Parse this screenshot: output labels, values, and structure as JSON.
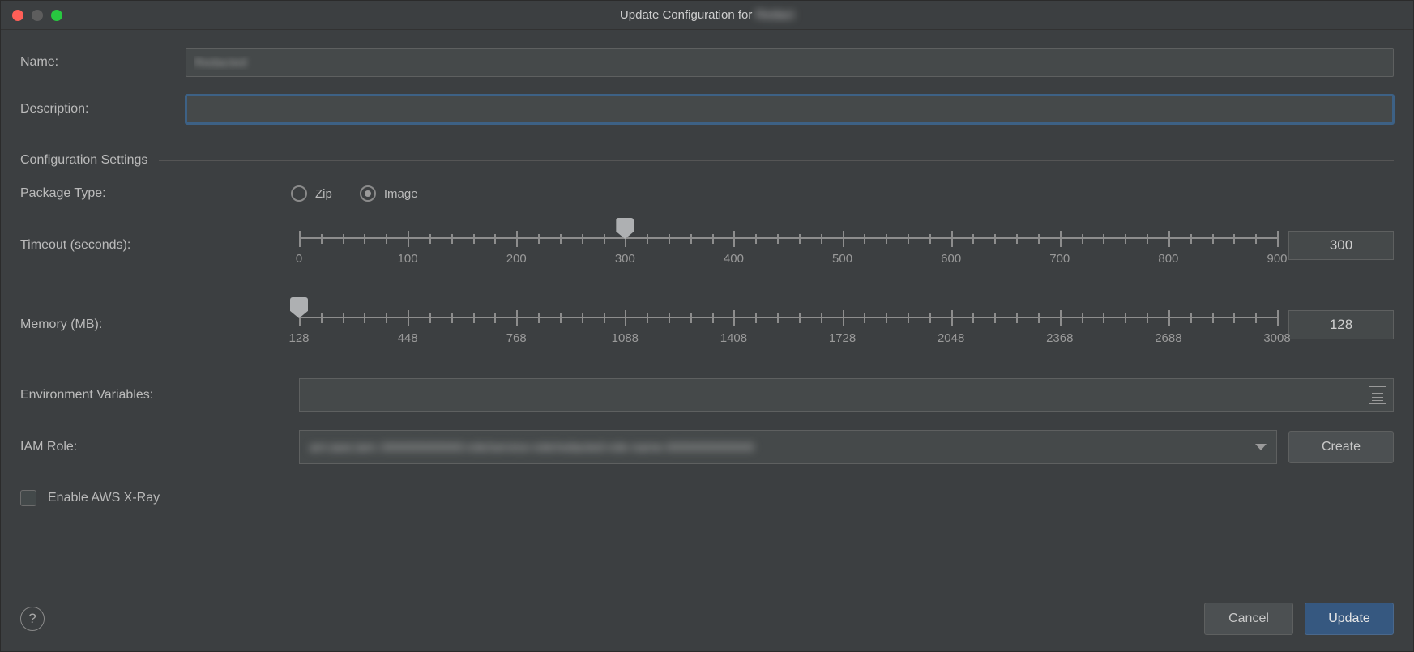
{
  "window": {
    "title_prefix": "Update Configuration for",
    "title_subject": "Redact"
  },
  "colors": {
    "background": "#3c3f41",
    "input_bg": "#45494a",
    "border": "#5e6060",
    "accent": "#365880",
    "text": "#bbbbbb",
    "focus_border": "#3d6185"
  },
  "fields": {
    "name": {
      "label": "Name:",
      "value": "Redacted"
    },
    "description": {
      "label": "Description:",
      "value": ""
    }
  },
  "section_title": "Configuration Settings",
  "package_type": {
    "label": "Package Type:",
    "options": [
      {
        "label": "Zip",
        "selected": false
      },
      {
        "label": "Image",
        "selected": true
      }
    ]
  },
  "timeout": {
    "label": "Timeout (seconds):",
    "min": 0,
    "max": 900,
    "major_step": 100,
    "minor_per_major": 5,
    "major_ticks": [
      0,
      100,
      200,
      300,
      400,
      500,
      600,
      700,
      800,
      900
    ],
    "value": 300
  },
  "memory": {
    "label": "Memory (MB):",
    "min": 128,
    "max": 3008,
    "major_step": 320,
    "minor_per_major": 5,
    "major_ticks": [
      128,
      448,
      768,
      1088,
      1408,
      1728,
      2048,
      2368,
      2688,
      3008
    ],
    "value": 128
  },
  "env_vars": {
    "label": "Environment Variables:",
    "value": ""
  },
  "iam_role": {
    "label": "IAM Role:",
    "value": "arn:aws:iam::000000000000:role/service-role/redacted-role-name-0000000000000",
    "create_label": "Create"
  },
  "xray": {
    "label": "Enable AWS X-Ray",
    "checked": false
  },
  "buttons": {
    "help": "?",
    "cancel": "Cancel",
    "update": "Update"
  }
}
